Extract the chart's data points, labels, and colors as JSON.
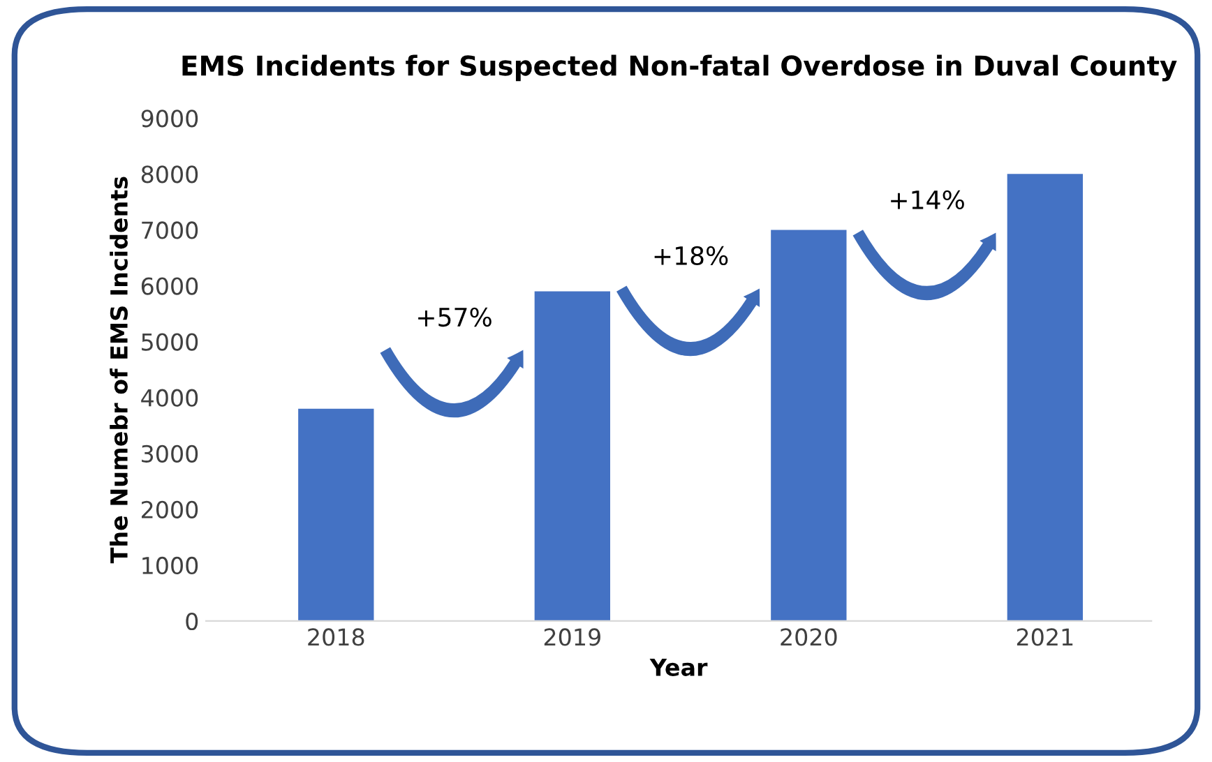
{
  "chart_data": {
    "type": "bar",
    "title": "EMS Incidents for Suspected Non-fatal Overdose in Duval County",
    "xlabel": "Year",
    "ylabel": "The Numebr of EMS Incidents",
    "categories": [
      "2018",
      "2019",
      "2020",
      "2021"
    ],
    "values": [
      3800,
      5900,
      7000,
      8000
    ],
    "color": "#4472c4",
    "ylim": [
      0,
      9000
    ],
    "yticks": [
      0,
      1000,
      2000,
      3000,
      4000,
      5000,
      6000,
      7000,
      8000,
      9000
    ],
    "grid": false,
    "legend": false,
    "annotations": [
      "+57%",
      "+18%",
      "+14%"
    ]
  }
}
